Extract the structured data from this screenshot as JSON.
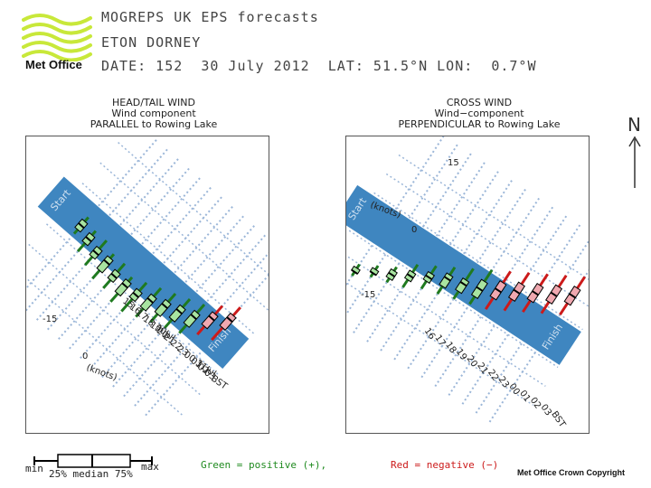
{
  "header": {
    "line1": "MOGREPS UK EPS forecasts",
    "line2": "ETON DORNEY",
    "line3": "DATE: 152  30 July 2012  LAT: 51.5°N LON:  0.7°W",
    "brand": "Met Office",
    "north": "N"
  },
  "colors": {
    "lake": "#3f86c0",
    "logo": "#c8e83a",
    "positive": "#1f7a1f",
    "positive_box": "#a8e4a0",
    "negative": "#cc1a1a",
    "negative_box": "#f0a8b0",
    "grid": "#9bb6d8"
  },
  "footer": {
    "min": "min",
    "max": "max",
    "quartiles": "25% median 75%",
    "green_note": "Green = positive (+),",
    "red_note": "Red = negative (−)",
    "copyright": "Met Office Crown Copyright"
  },
  "chart_data": [
    {
      "type": "box",
      "title": [
        "HEAD/TAIL WIND",
        "Wind component",
        "PARALLEL to Rowing Lake"
      ],
      "unit_label": "(knots)",
      "lake_labels": [
        "Start",
        "Finish"
      ],
      "value_ticks": [
        "-15",
        "0"
      ],
      "time_labels": [
        "BST",
        "03",
        "02",
        "01",
        "00 31Jul",
        "23",
        "22",
        "21",
        "20",
        "19",
        "18 30Jul",
        "17",
        "16",
        "15"
      ],
      "series": [
        {
          "time": "15",
          "min": -1,
          "q1": 0,
          "median": 1,
          "q3": 2,
          "max": 3
        },
        {
          "time": "16",
          "min": 0,
          "q1": 1,
          "median": 2,
          "q3": 3,
          "max": 5
        },
        {
          "time": "17",
          "min": 0,
          "q1": 2,
          "median": 3,
          "q3": 4,
          "max": 6
        },
        {
          "time": "18",
          "min": 1,
          "q1": 2,
          "median": 3,
          "q3": 5,
          "max": 7
        },
        {
          "time": "19",
          "min": 1,
          "q1": 3,
          "median": 4,
          "q3": 5,
          "max": 7
        },
        {
          "time": "20",
          "min": 2,
          "q1": 3,
          "median": 4,
          "q3": 6,
          "max": 8
        },
        {
          "time": "21",
          "min": 1,
          "q1": 3,
          "median": 4,
          "q3": 5,
          "max": 8
        },
        {
          "time": "22",
          "min": 0,
          "q1": 2,
          "median": 3,
          "q3": 5,
          "max": 7
        },
        {
          "time": "23",
          "min": -1,
          "q1": 1,
          "median": 2,
          "q3": 4,
          "max": 6
        },
        {
          "time": "00",
          "min": -2,
          "q1": 0,
          "median": 1,
          "q3": 3,
          "max": 5
        },
        {
          "time": "01",
          "min": -3,
          "q1": -1,
          "median": 0,
          "q3": 2,
          "max": 4
        },
        {
          "time": "02",
          "min": -5,
          "q1": -3,
          "median": -2,
          "q3": 0,
          "max": 2
        },
        {
          "time": "03",
          "min": -7,
          "q1": -5,
          "median": -4,
          "q3": -2,
          "max": 1
        }
      ]
    },
    {
      "type": "box",
      "title": [
        "CROSS WIND",
        "Wind−component",
        "PERPENDICULAR to Rowing Lake"
      ],
      "unit_label": "(knots)",
      "lake_labels": [
        "Start",
        "Finish"
      ],
      "value_ticks": [
        "15",
        "0",
        "-15"
      ],
      "time_labels": [
        "16",
        "17",
        "18",
        "19",
        "20",
        "21",
        "22",
        "23",
        "00",
        "01",
        "02",
        "03",
        "BST"
      ],
      "date_labels": [
        "30Jul",
        "31Jul"
      ],
      "series": [
        {
          "time": "15",
          "min": 10,
          "q1": 11,
          "median": 12,
          "q3": 12,
          "max": 13
        },
        {
          "time": "16",
          "min": 8,
          "q1": 9,
          "median": 10,
          "q3": 10,
          "max": 11
        },
        {
          "time": "17",
          "min": 6,
          "q1": 7,
          "median": 8,
          "q3": 9,
          "max": 10
        },
        {
          "time": "18",
          "min": 3,
          "q1": 5,
          "median": 6,
          "q3": 7,
          "max": 9
        },
        {
          "time": "19",
          "min": 1,
          "q1": 3,
          "median": 4,
          "q3": 5,
          "max": 7
        },
        {
          "time": "20",
          "min": -1,
          "q1": 1,
          "median": 2,
          "q3": 4,
          "max": 6
        },
        {
          "time": "21",
          "min": -3,
          "q1": 0,
          "median": 1,
          "q3": 3,
          "max": 5
        },
        {
          "time": "22",
          "min": -5,
          "q1": -2,
          "median": 0,
          "q3": 2,
          "max": 4
        },
        {
          "time": "23",
          "min": -7,
          "q1": -4,
          "median": -2,
          "q3": 0,
          "max": 3
        },
        {
          "time": "00",
          "min": -9,
          "q1": -6,
          "median": -4,
          "q3": -2,
          "max": 1
        },
        {
          "time": "01",
          "min": -11,
          "q1": -8,
          "median": -6,
          "q3": -4,
          "max": -1
        },
        {
          "time": "02",
          "min": -13,
          "q1": -10,
          "median": -8,
          "q3": -6,
          "max": -3
        },
        {
          "time": "03",
          "min": -15,
          "q1": -12,
          "median": -10,
          "q3": -8,
          "max": -5
        }
      ]
    }
  ]
}
